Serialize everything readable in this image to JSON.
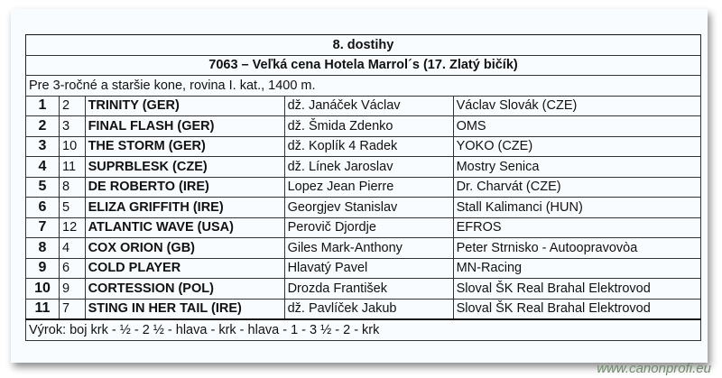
{
  "race": {
    "header": "8. dostihy",
    "title": "7063 – Veľká cena Hotela Marrol´s (17. Zlatý bičík)",
    "conditions": "Pre 3-ročné a staršie kone, rovina I. kat., 1400 m.",
    "results": [
      {
        "place": "1",
        "number": "2",
        "horse": "TRINITY (GER)",
        "jockey": "dž. Janáček Václav",
        "owner": "Václav Slovák (CZE)"
      },
      {
        "place": "2",
        "number": "3",
        "horse": "FINAL FLASH (GER)",
        "jockey": "dž. Šmida Zdenko",
        "owner": "OMS"
      },
      {
        "place": "3",
        "number": "10",
        "horse": "THE STORM (GER)",
        "jockey": "dž. Koplík 4 Radek",
        "owner": "YOKO (CZE)"
      },
      {
        "place": "4",
        "number": "11",
        "horse": "SUPRBLESK (CZE)",
        "jockey": "dž. Línek Jaroslav",
        "owner": "Mostry Senica"
      },
      {
        "place": "5",
        "number": "8",
        "horse": "DE ROBERTO (IRE)",
        "jockey": "Lopez Jean Pierre",
        "owner": "Dr. Charvát (CZE)"
      },
      {
        "place": "6",
        "number": "5",
        "horse": "ELIZA GRIFFITH (IRE)",
        "jockey": "Georgjev Stanislav",
        "owner": "Stall Kalimanci (HUN)"
      },
      {
        "place": "7",
        "number": "12",
        "horse": "ATLANTIC WAVE (USA)",
        "jockey": "Perovič Djordje",
        "owner": "EFROS"
      },
      {
        "place": "8",
        "number": "4",
        "horse": "COX ORION (GB)",
        "jockey": "Giles Mark-Anthony",
        "owner": "Peter Strnisko - Autoopravovòa"
      },
      {
        "place": "9",
        "number": "6",
        "horse": "COLD PLAYER",
        "jockey": "Hlavatý Pavel",
        "owner": "MN-Racing"
      },
      {
        "place": "10",
        "number": "9",
        "horse": "CORTESSION (POL)",
        "jockey": "Drozda František",
        "owner": "Sloval ŠK Real Brahal Elektrovod"
      },
      {
        "place": "11",
        "number": "7",
        "horse": "STING IN HER TAIL (IRE)",
        "jockey": "dž. Pavlíček Jakub",
        "owner": "Sloval ŠK Real Brahal Elektrovod"
      }
    ],
    "verdict": "Výrok: boj krk - ½ - 2 ½ - hlava - krk - hlava - 1 - 3 ½ - 2 - krk"
  },
  "watermark": "www.canonprofi.eu"
}
